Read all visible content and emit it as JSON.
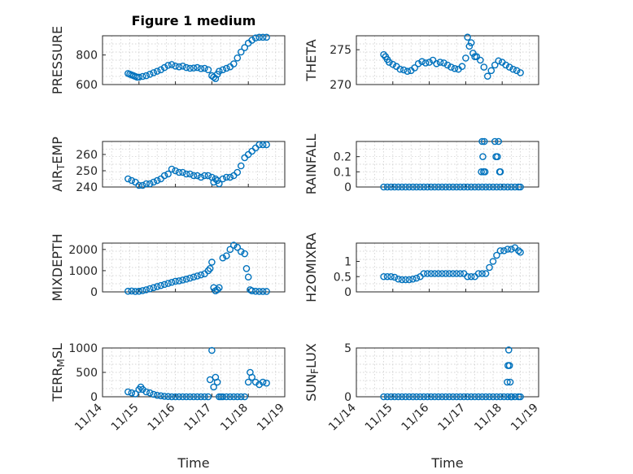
{
  "chart_data": [
    {
      "type": "scatter",
      "title": "Figure 1 medium",
      "ylabel": "PRESSURE",
      "ylim": [
        600,
        930
      ],
      "yticks": [
        600,
        800
      ],
      "xlim": [
        0,
        5
      ],
      "xlabel": "",
      "x": [
        0.7,
        0.75,
        0.8,
        0.85,
        0.9,
        0.95,
        1.0,
        1.1,
        1.2,
        1.3,
        1.4,
        1.5,
        1.6,
        1.7,
        1.8,
        1.9,
        2.0,
        2.1,
        2.2,
        2.3,
        2.4,
        2.5,
        2.6,
        2.7,
        2.8,
        2.9,
        3.0,
        3.05,
        3.1,
        3.15,
        3.2,
        3.3,
        3.4,
        3.5,
        3.6,
        3.7,
        3.8,
        3.9,
        4.0,
        4.1,
        4.2,
        4.3,
        4.4,
        4.5
      ],
      "y": [
        675,
        670,
        665,
        660,
        655,
        650,
        650,
        655,
        660,
        670,
        680,
        690,
        700,
        715,
        730,
        735,
        725,
        720,
        725,
        715,
        710,
        712,
        715,
        708,
        710,
        700,
        660,
        650,
        640,
        670,
        690,
        700,
        710,
        720,
        740,
        780,
        820,
        850,
        880,
        900,
        915,
        920,
        920,
        920
      ]
    },
    {
      "type": "scatter",
      "title": "",
      "ylabel": "THETA",
      "ylim": [
        270,
        277
      ],
      "yticks": [
        270,
        275
      ],
      "xlim": [
        0,
        5
      ],
      "xlabel": "",
      "x": [
        0.75,
        0.8,
        0.85,
        0.9,
        1.0,
        1.1,
        1.2,
        1.3,
        1.4,
        1.5,
        1.6,
        1.7,
        1.8,
        1.9,
        2.0,
        2.1,
        2.2,
        2.3,
        2.4,
        2.5,
        2.6,
        2.7,
        2.8,
        2.9,
        3.0,
        3.05,
        3.1,
        3.15,
        3.2,
        3.25,
        3.3,
        3.4,
        3.5,
        3.6,
        3.7,
        3.8,
        3.9,
        4.0,
        4.1,
        4.2,
        4.3,
        4.4,
        4.5
      ],
      "y": [
        274.3,
        274.0,
        273.6,
        273.2,
        272.9,
        272.6,
        272.2,
        272.1,
        271.9,
        272.0,
        272.4,
        273.0,
        273.3,
        273.1,
        273.2,
        273.5,
        273.0,
        273.2,
        273.1,
        272.8,
        272.5,
        272.3,
        272.2,
        272.6,
        273.8,
        276.8,
        275.5,
        276.0,
        274.5,
        274.0,
        274.0,
        273.5,
        272.5,
        271.2,
        272.0,
        272.8,
        273.4,
        273.2,
        272.8,
        272.5,
        272.2,
        272.0,
        271.7
      ]
    },
    {
      "type": "scatter",
      "title": "",
      "ylabel": "AIR_TEMP",
      "ylim": [
        240,
        268
      ],
      "yticks": [
        240,
        250,
        260
      ],
      "xlim": [
        0,
        5
      ],
      "xlabel": "",
      "x": [
        0.7,
        0.8,
        0.9,
        1.0,
        1.1,
        1.2,
        1.3,
        1.4,
        1.5,
        1.6,
        1.7,
        1.8,
        1.9,
        2.0,
        2.1,
        2.2,
        2.3,
        2.4,
        2.5,
        2.6,
        2.7,
        2.8,
        2.9,
        3.0,
        3.05,
        3.1,
        3.15,
        3.2,
        3.3,
        3.4,
        3.5,
        3.6,
        3.7,
        3.8,
        3.9,
        4.0,
        4.1,
        4.2,
        4.3,
        4.4,
        4.5
      ],
      "y": [
        245,
        244,
        243,
        241,
        241,
        242,
        242,
        243,
        244,
        245,
        247,
        248,
        251,
        250,
        249,
        249,
        248,
        248,
        247,
        247,
        246,
        247,
        247,
        246,
        243,
        245,
        244,
        242,
        245,
        246,
        246,
        247,
        249,
        253,
        258,
        260,
        262,
        264,
        266,
        266,
        266
      ]
    },
    {
      "type": "scatter",
      "title": "",
      "ylabel": "RAINFALL",
      "ylim": [
        0,
        0.3
      ],
      "yticks": [
        0,
        0.1,
        0.2
      ],
      "xlim": [
        0,
        5
      ],
      "xlabel": "",
      "x": [
        0.75,
        0.85,
        0.95,
        1.05,
        1.15,
        1.25,
        1.35,
        1.45,
        1.55,
        1.65,
        1.75,
        1.85,
        1.95,
        2.05,
        2.15,
        2.25,
        2.35,
        2.45,
        2.55,
        2.65,
        2.75,
        2.85,
        2.95,
        3.05,
        3.15,
        3.25,
        3.35,
        3.45,
        3.55,
        3.65,
        3.75,
        3.85,
        3.95,
        4.05,
        4.15,
        4.25,
        4.35,
        4.45,
        4.5,
        3.43,
        3.45,
        3.47,
        3.49,
        3.51,
        3.53,
        3.8,
        3.83,
        3.87,
        3.9,
        3.93,
        3.95
      ],
      "y": [
        0,
        0,
        0,
        0,
        0,
        0,
        0,
        0,
        0,
        0,
        0,
        0,
        0,
        0,
        0,
        0,
        0,
        0,
        0,
        0,
        0,
        0,
        0,
        0,
        0,
        0,
        0,
        0,
        0,
        0,
        0,
        0,
        0,
        0,
        0,
        0,
        0,
        0,
        0,
        0.1,
        0.3,
        0.2,
        0.1,
        0.3,
        0.1,
        0.3,
        0.2,
        0.2,
        0.3,
        0.1,
        0.1
      ]
    },
    {
      "type": "scatter",
      "title": "",
      "ylabel": "MIXDEPTH",
      "ylim": [
        0,
        2300
      ],
      "yticks": [
        0,
        1000,
        2000
      ],
      "xlim": [
        0,
        5
      ],
      "xlabel": "",
      "x": [
        0.7,
        0.8,
        0.9,
        1.0,
        1.1,
        1.2,
        1.3,
        1.4,
        1.5,
        1.6,
        1.7,
        1.8,
        1.9,
        2.0,
        2.1,
        2.2,
        2.3,
        2.4,
        2.5,
        2.6,
        2.7,
        2.8,
        2.9,
        2.95,
        3.0,
        3.05,
        3.1,
        3.15,
        3.2,
        3.3,
        3.4,
        3.5,
        3.6,
        3.7,
        3.8,
        3.9,
        3.95,
        4.0,
        4.05,
        4.1,
        4.2,
        4.3,
        4.4,
        4.5
      ],
      "y": [
        30,
        40,
        20,
        30,
        60,
        100,
        150,
        200,
        250,
        300,
        350,
        400,
        450,
        500,
        520,
        560,
        600,
        650,
        700,
        750,
        800,
        850,
        1000,
        1100,
        1400,
        200,
        50,
        100,
        200,
        1600,
        1700,
        2000,
        2200,
        2100,
        1900,
        1800,
        1100,
        700,
        100,
        50,
        30,
        20,
        20,
        20
      ]
    },
    {
      "type": "scatter",
      "title": "",
      "ylabel": "H2OMIXRA",
      "ylim": [
        0,
        1.6
      ],
      "yticks": [
        0,
        0.5,
        1
      ],
      "xlim": [
        0,
        5
      ],
      "xlabel": "",
      "x": [
        0.75,
        0.85,
        0.95,
        1.05,
        1.15,
        1.25,
        1.35,
        1.45,
        1.55,
        1.65,
        1.75,
        1.85,
        1.95,
        2.05,
        2.15,
        2.25,
        2.35,
        2.45,
        2.55,
        2.65,
        2.75,
        2.85,
        2.95,
        3.05,
        3.15,
        3.25,
        3.35,
        3.45,
        3.55,
        3.65,
        3.75,
        3.85,
        3.95,
        4.05,
        4.15,
        4.25,
        4.35,
        4.45,
        4.5
      ],
      "y": [
        0.5,
        0.5,
        0.5,
        0.48,
        0.42,
        0.4,
        0.4,
        0.4,
        0.42,
        0.45,
        0.5,
        0.6,
        0.6,
        0.6,
        0.6,
        0.6,
        0.6,
        0.6,
        0.6,
        0.6,
        0.6,
        0.6,
        0.6,
        0.5,
        0.5,
        0.5,
        0.6,
        0.6,
        0.6,
        0.8,
        1.0,
        1.2,
        1.35,
        1.35,
        1.4,
        1.4,
        1.45,
        1.35,
        1.3
      ]
    },
    {
      "type": "scatter",
      "title": "",
      "ylabel": "TERR_MSL",
      "ylim": [
        0,
        1000
      ],
      "yticks": [
        0,
        500,
        1000
      ],
      "xlim": [
        0,
        5
      ],
      "xlabel": "Time",
      "xticks": [
        0,
        1,
        2,
        3,
        4,
        5
      ],
      "xticklabels": [
        "11/14",
        "11/15",
        "11/16",
        "11/17",
        "11/18",
        "11/19"
      ],
      "x": [
        0.7,
        0.8,
        0.9,
        1.0,
        1.05,
        1.1,
        1.2,
        1.3,
        1.4,
        1.5,
        1.6,
        1.7,
        1.8,
        1.9,
        2.0,
        2.1,
        2.2,
        2.3,
        2.4,
        2.5,
        2.6,
        2.7,
        2.8,
        2.9,
        2.95,
        3.0,
        3.05,
        3.1,
        3.15,
        3.2,
        3.25,
        3.3,
        3.4,
        3.5,
        3.6,
        3.7,
        3.8,
        3.9,
        4.0,
        4.05,
        4.1,
        4.2,
        4.3,
        4.4,
        4.5
      ],
      "y": [
        100,
        80,
        60,
        150,
        200,
        150,
        100,
        80,
        50,
        30,
        20,
        10,
        5,
        0,
        0,
        0,
        0,
        0,
        0,
        0,
        0,
        0,
        0,
        0,
        350,
        950,
        200,
        400,
        300,
        0,
        0,
        0,
        0,
        0,
        0,
        0,
        0,
        0,
        300,
        500,
        400,
        300,
        250,
        300,
        280
      ]
    },
    {
      "type": "scatter",
      "title": "",
      "ylabel": "SUN_FLUX",
      "ylim": [
        0,
        5
      ],
      "yticks": [
        0,
        5
      ],
      "xlim": [
        0,
        5
      ],
      "xlabel": "Time",
      "xticks": [
        0,
        1,
        2,
        3,
        4,
        5
      ],
      "xticklabels": [
        "11/14",
        "11/15",
        "11/16",
        "11/17",
        "11/18",
        "11/19"
      ],
      "x": [
        0.75,
        0.85,
        0.95,
        1.05,
        1.15,
        1.25,
        1.35,
        1.45,
        1.55,
        1.65,
        1.75,
        1.85,
        1.95,
        2.05,
        2.15,
        2.25,
        2.35,
        2.45,
        2.55,
        2.65,
        2.75,
        2.85,
        2.95,
        3.05,
        3.15,
        3.25,
        3.35,
        3.45,
        3.55,
        3.65,
        3.75,
        3.85,
        3.95,
        4.05,
        4.15,
        4.25,
        4.35,
        4.45,
        4.5,
        4.14,
        4.16,
        4.18,
        4.2,
        4.22,
        4.24,
        4.26
      ],
      "y": [
        0,
        0,
        0,
        0,
        0,
        0,
        0,
        0,
        0,
        0,
        0,
        0,
        0,
        0,
        0,
        0,
        0,
        0,
        0,
        0,
        0,
        0,
        0,
        0,
        0,
        0,
        0,
        0,
        0,
        0,
        0,
        0,
        0,
        0,
        0,
        0,
        0,
        0,
        0,
        1.5,
        3.2,
        4.8,
        3.2,
        1.5,
        0,
        0
      ]
    }
  ]
}
